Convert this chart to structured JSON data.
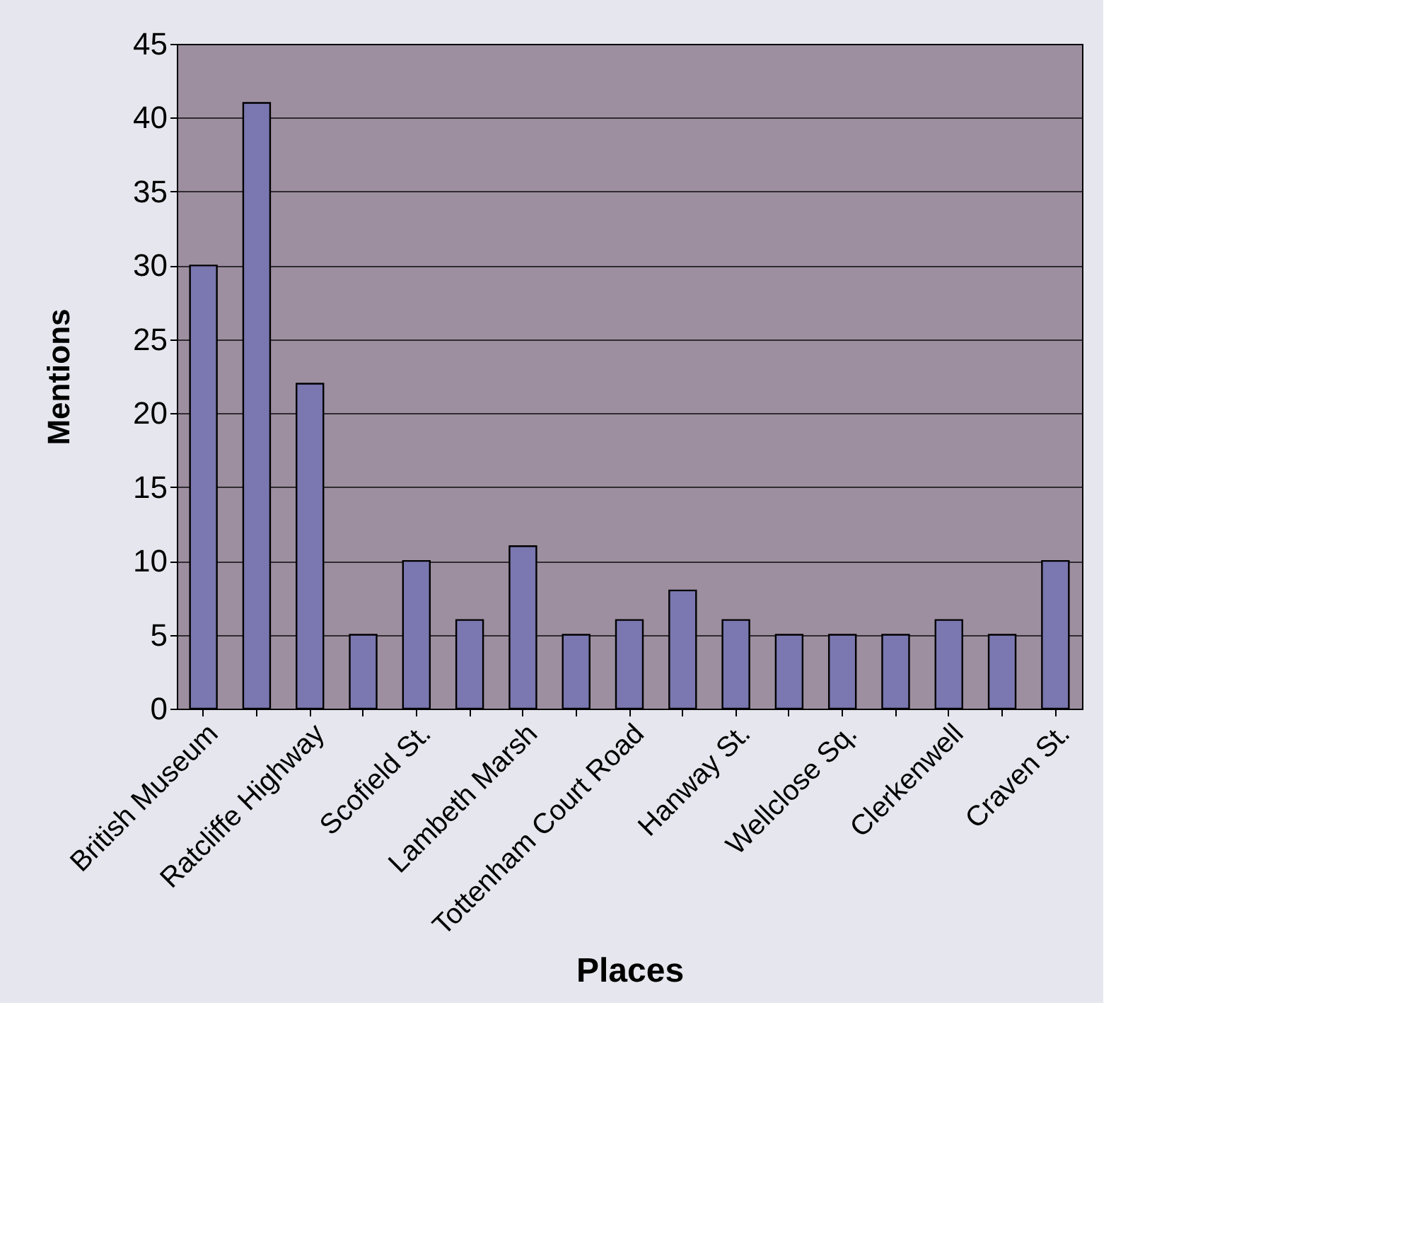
{
  "chart_data": {
    "type": "bar",
    "xlabel": "Places",
    "ylabel": "Mentions",
    "categories": [
      "British Museum",
      null,
      "Ratcliffe Highway",
      null,
      "Scofield St.",
      null,
      "Lambeth Marsh",
      null,
      "Tottenham Court Road",
      null,
      "Hanway St.",
      null,
      "Wellclose Sq.",
      null,
      "Clerkenwell",
      null,
      "Craven St."
    ],
    "values": [
      30,
      41,
      22,
      5,
      10,
      6,
      11,
      5,
      6,
      8,
      6,
      5,
      5,
      5,
      6,
      5,
      10
    ],
    "color": "#7b77b0",
    "ylim": [
      0,
      45
    ],
    "yticks": [
      0,
      5,
      10,
      15,
      20,
      25,
      30,
      35,
      40,
      45
    ],
    "grid": "y"
  }
}
